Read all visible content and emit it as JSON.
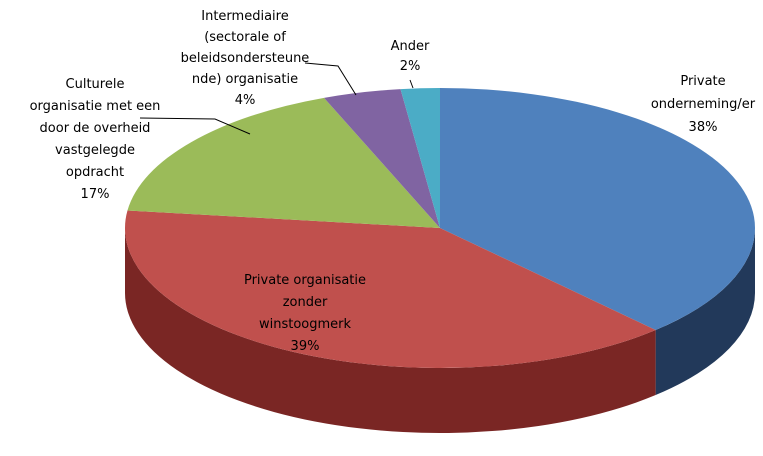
{
  "chart_data": {
    "type": "pie",
    "categories": [
      "Private\nonderneming/er",
      "Private organisatie\nzonder\nwinstoogmerk",
      "Culturele\norganisatie met een\ndoor de overheid\nvastgelegde\nopdracht",
      "Intermediaire\n(sectorale of\nbeleidsondersteune\nnde) organisatie",
      "Ander"
    ],
    "values": [
      38,
      39,
      17,
      4,
      2
    ],
    "value_labels": [
      "38%",
      "39%",
      "17%",
      "4%",
      "2%"
    ],
    "colors": [
      "#4f81bd",
      "#c0504d",
      "#9bbb59",
      "#8064a2",
      "#4bacc6"
    ],
    "side_colors": [
      "#22395a",
      "#7a2624",
      "#5b7330",
      "#4a3663",
      "#2a7088"
    ]
  }
}
